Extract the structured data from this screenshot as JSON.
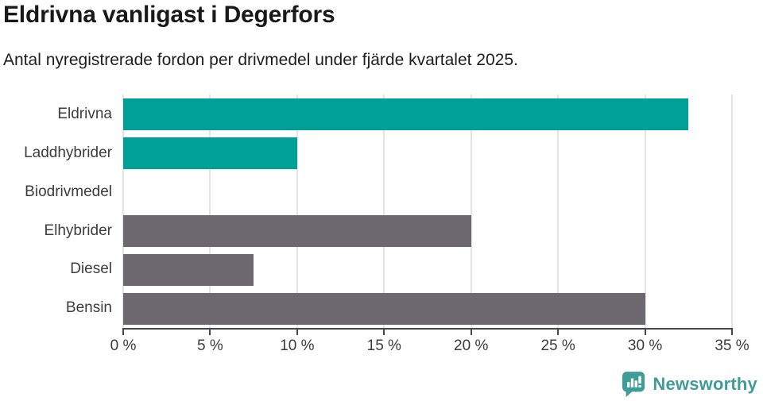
{
  "header": {
    "title": "Eldrivna vanligast i Degerfors",
    "subtitle": "Antal nyregistrerade fordon per drivmedel under fjärde kvartalet 2025."
  },
  "chart_data": {
    "type": "bar",
    "orientation": "horizontal",
    "title": "Eldrivna vanligast i Degerfors",
    "subtitle": "Antal nyregistrerade fordon per drivmedel under fjärde kvartalet 2025.",
    "categories": [
      "Eldrivna",
      "Laddhybrider",
      "Biodrivmedel",
      "Elhybrider",
      "Diesel",
      "Bensin"
    ],
    "values": [
      32.5,
      10,
      0,
      20,
      7.5,
      30
    ],
    "unit": "%",
    "xlabel": "",
    "ylabel": "",
    "xlim": [
      0,
      35
    ],
    "x_ticks": [
      0,
      5,
      10,
      15,
      20,
      25,
      30,
      35
    ],
    "x_tick_labels": [
      "0 %",
      "5 %",
      "10 %",
      "15 %",
      "20 %",
      "25 %",
      "30 %",
      "35 %"
    ],
    "bar_colors": [
      "#00a099",
      "#00a099",
      "#6b6870",
      "#6b6870",
      "#6b6870",
      "#6b6870"
    ],
    "grid": "vertical-only",
    "legend": "none"
  },
  "colors": {
    "teal": "#00a099",
    "gray": "#6b6870",
    "gridline": "#e4e4e4",
    "axis": "#47464c",
    "text_dark": "#191919",
    "label_gray": "#3c3c3c",
    "brand_teal": "#3f9c96"
  },
  "footer": {
    "brand": "Newsworthy",
    "brand_icon": "newsworthy-speech-bubble-barchart-icon"
  }
}
